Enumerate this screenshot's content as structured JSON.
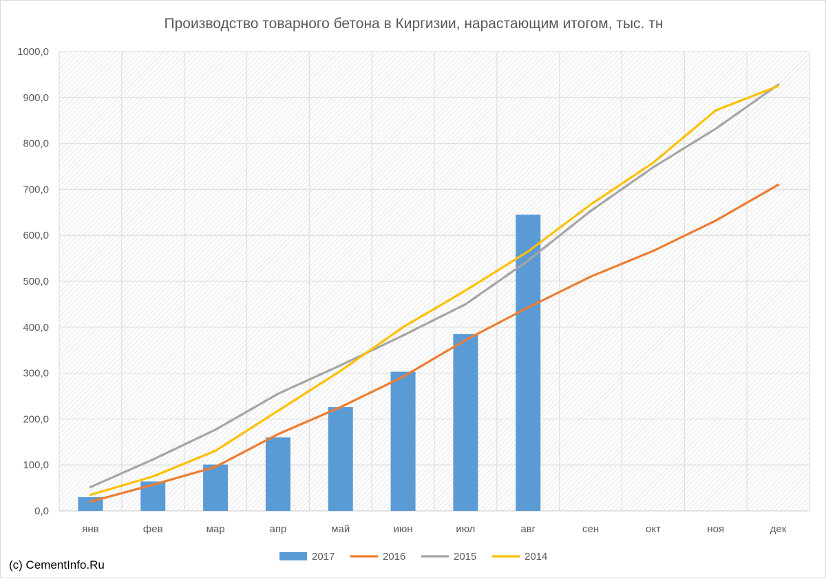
{
  "chart_data": {
    "type": "bar",
    "title": "Производство товарного бетона в Киргизии, нарастающим итогом, тыс. тн",
    "categories": [
      "янв",
      "фев",
      "мар",
      "апр",
      "май",
      "июн",
      "июл",
      "авг",
      "сен",
      "окт",
      "ноя",
      "дек"
    ],
    "ylim": [
      0,
      1000
    ],
    "yticks": [
      "0,0",
      "100,0",
      "200,0",
      "300,0",
      "400,0",
      "500,0",
      "600,0",
      "700,0",
      "800,0",
      "900,0",
      "1000,0"
    ],
    "grid": true,
    "legend_position": "bottom",
    "series": [
      {
        "name": "2017",
        "kind": "bar",
        "color": "#5b9bd5",
        "values": [
          30,
          64,
          101,
          160,
          226,
          303,
          385,
          645,
          null,
          null,
          null,
          null
        ]
      },
      {
        "name": "2016",
        "kind": "line",
        "color": "#ed7d31",
        "values": [
          20,
          57,
          96,
          167,
          226,
          292,
          372,
          443,
          510,
          566,
          632,
          710
        ]
      },
      {
        "name": "2015",
        "kind": "line",
        "color": "#a5a5a5",
        "values": [
          52,
          112,
          177,
          255,
          317,
          382,
          450,
          545,
          653,
          748,
          832,
          928
        ]
      },
      {
        "name": "2014",
        "kind": "line",
        "color": "#ffc000",
        "values": [
          35,
          75,
          131,
          218,
          305,
          400,
          480,
          565,
          667,
          758,
          872,
          925
        ]
      }
    ]
  },
  "footer": {
    "text": "(c) CementInfo.Ru"
  }
}
